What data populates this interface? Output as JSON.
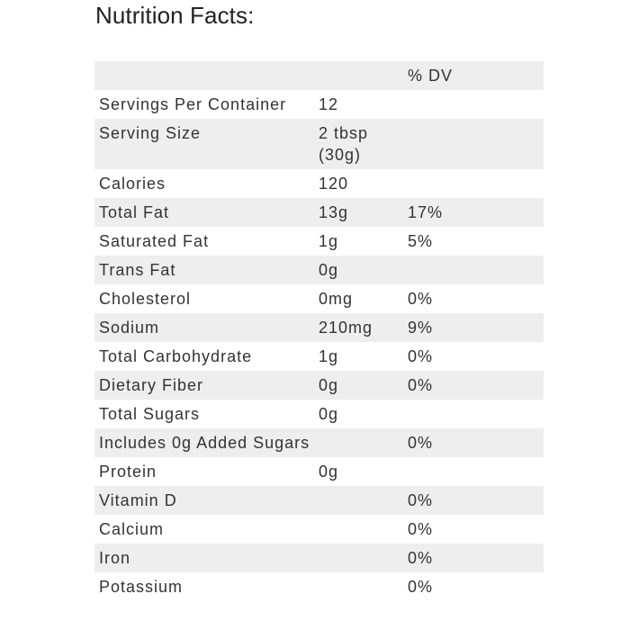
{
  "title": "Nutrition Facts:",
  "header": {
    "col1": "",
    "col2": "",
    "col3": "% DV"
  },
  "rows": [
    {
      "nutrient": "Servings Per Container",
      "amount": "12",
      "dv": ""
    },
    {
      "nutrient": "Serving Size",
      "amount": "2 tbsp (30g)",
      "dv": ""
    },
    {
      "nutrient": "Calories",
      "amount": "120",
      "dv": ""
    },
    {
      "nutrient": "Total Fat",
      "amount": "13g",
      "dv": "17%"
    },
    {
      "nutrient": "Saturated Fat",
      "amount": "1g",
      "dv": "5%"
    },
    {
      "nutrient": "Trans Fat",
      "amount": "0g",
      "dv": ""
    },
    {
      "nutrient": "Cholesterol",
      "amount": "0mg",
      "dv": "0%"
    },
    {
      "nutrient": "Sodium",
      "amount": "210mg",
      "dv": "9%"
    },
    {
      "nutrient": "Total Carbohydrate",
      "amount": "1g",
      "dv": "0%"
    },
    {
      "nutrient": "Dietary Fiber",
      "amount": "0g",
      "dv": "0%"
    },
    {
      "nutrient": "Total Sugars",
      "amount": "0g",
      "dv": ""
    },
    {
      "nutrient": "Includes 0g Added Sugars",
      "amount": "",
      "dv": "0%"
    },
    {
      "nutrient": "Protein",
      "amount": "0g",
      "dv": ""
    },
    {
      "nutrient": "Vitamin D",
      "amount": "",
      "dv": "0%"
    },
    {
      "nutrient": "Calcium",
      "amount": "",
      "dv": "0%"
    },
    {
      "nutrient": "Iron",
      "amount": "",
      "dv": "0%"
    },
    {
      "nutrient": "Potassium",
      "amount": "",
      "dv": "0%"
    }
  ],
  "colors": {
    "stripe": "#eeeeee",
    "text": "#333333"
  }
}
